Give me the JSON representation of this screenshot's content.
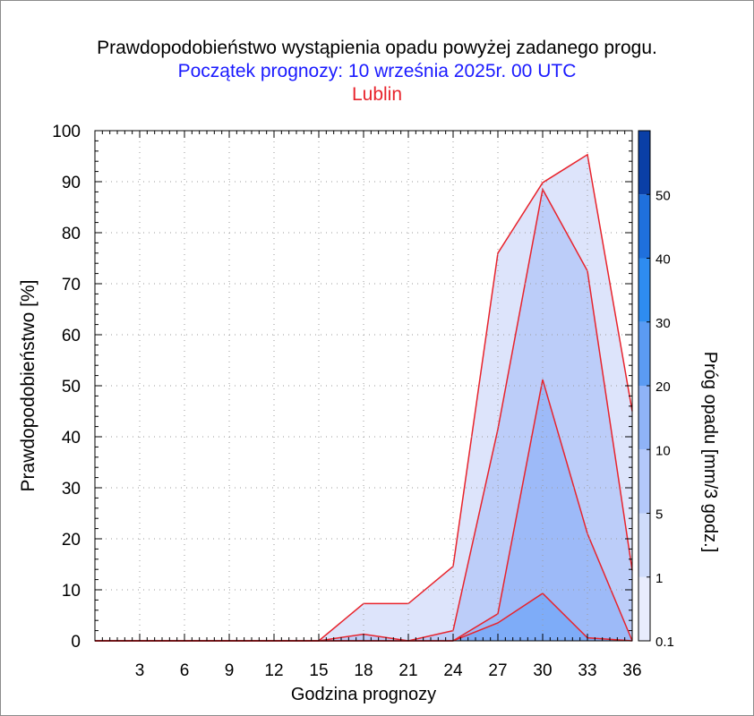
{
  "title": "Prawdopodobieństwo wystąpienia opadu powyżej zadanego progu.",
  "subtitle": "Początek prognozy: 10 września 2025r. 00 UTC",
  "location": "Lublin",
  "colors": {
    "title": "#000000",
    "subtitle": "#1a1aff",
    "location": "#e8232c",
    "outline": "#e8232c",
    "fill_0_1": "#dde4fb",
    "fill_1": "#bccdf9",
    "fill_5": "#9dbaf8",
    "fill_10": "#7eacf8",
    "fill_20": "#5aa0f5"
  },
  "chart_data": {
    "type": "area",
    "title": "Prawdopodobieństwo wystąpienia opadu powyżej zadanego progu.",
    "xlabel": "Godzina prognozy",
    "ylabel": "Prawdopodobieństwo [%]",
    "xlim": [
      0,
      36
    ],
    "ylim": [
      0,
      100
    ],
    "x_ticks": [
      3,
      6,
      9,
      12,
      15,
      18,
      21,
      24,
      27,
      30,
      33,
      36
    ],
    "x_tick_labels": [
      "3",
      "6",
      "9",
      "12",
      "15",
      "18",
      "21",
      "24",
      "27",
      "30",
      "33",
      "36"
    ],
    "y_ticks": [
      0,
      10,
      20,
      30,
      40,
      50,
      60,
      70,
      80,
      90,
      100
    ],
    "y_tick_labels": [
      "0",
      "10",
      "20",
      "30",
      "40",
      "50",
      "60",
      "70",
      "80",
      "90",
      "100"
    ],
    "grid": true,
    "x": [
      0,
      3,
      6,
      9,
      12,
      15,
      18,
      21,
      24,
      27,
      30,
      33,
      36
    ],
    "series": [
      {
        "name": "0.1",
        "values": [
          0,
          0,
          0,
          0,
          0,
          0,
          7.3,
          7.3,
          14.6,
          76,
          89.8,
          95.3,
          45
        ]
      },
      {
        "name": "1",
        "values": [
          0,
          0,
          0,
          0,
          0,
          0,
          1.3,
          0,
          2,
          41.5,
          88.5,
          72.5,
          13.8
        ]
      },
      {
        "name": "5",
        "values": [
          0,
          0,
          0,
          0,
          0,
          0,
          0,
          0,
          0,
          5.3,
          51.2,
          21,
          0
        ]
      },
      {
        "name": "10",
        "values": [
          0,
          0,
          0,
          0,
          0,
          0,
          0,
          0,
          0,
          3.5,
          9.3,
          0.6,
          0
        ]
      }
    ],
    "colorbar": {
      "label": "Próg opadu [mm/3 godz.]",
      "tick_labels": [
        "0.1",
        "1",
        "5",
        "10",
        "20",
        "30",
        "40",
        "50"
      ],
      "colors": [
        "#e8ecfc",
        "#cfdcfb",
        "#b3c8fa",
        "#8fb3f7",
        "#5b9bf3",
        "#2e8cf0",
        "#1f70dd",
        "#155cc7",
        "#0a3fa6"
      ]
    }
  }
}
